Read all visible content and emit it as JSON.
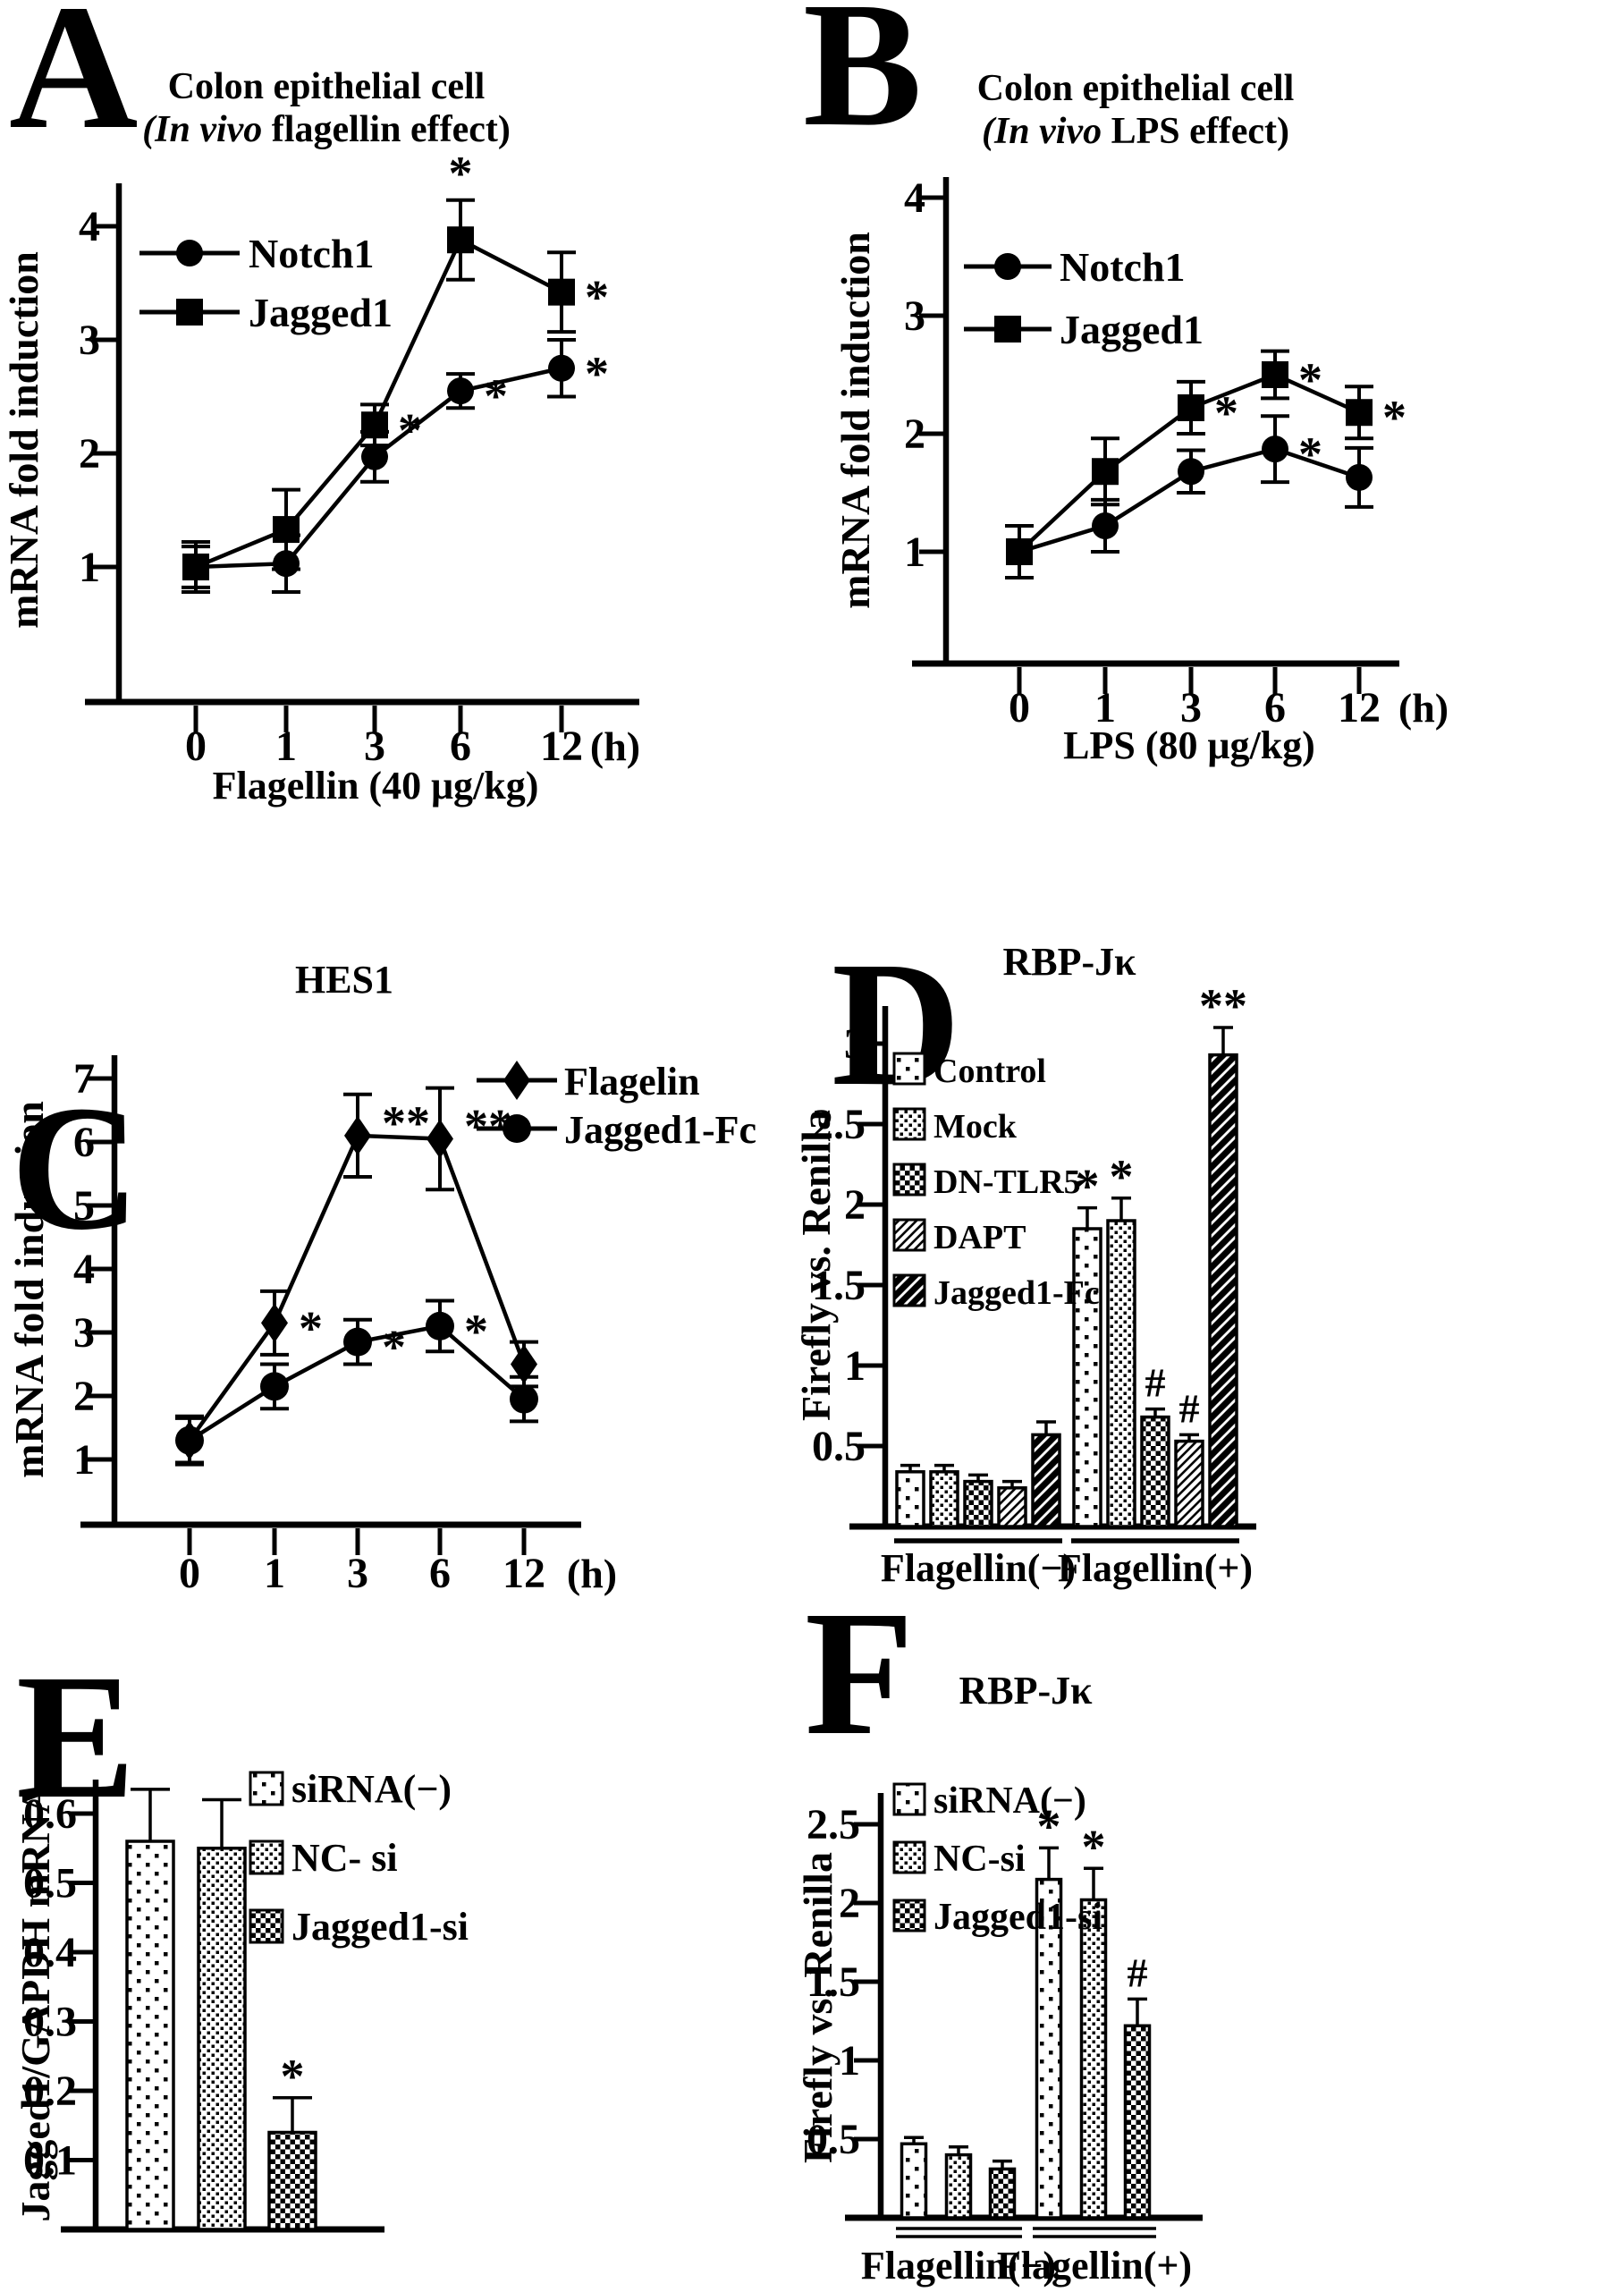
{
  "colors": {
    "ink": "#000000",
    "background": "#ffffff"
  },
  "chart_data": [
    {
      "panel": "A",
      "type": "line",
      "title": "Colon epithelial cell (In vivo flagellin effect)",
      "title_lines": [
        [
          {
            "t": "Colon epithelial cell"
          }
        ],
        [
          {
            "t": "(In vivo",
            "i": true
          },
          {
            "t": " flagellin effect)"
          }
        ]
      ],
      "ylabel": "mRNA fold induction",
      "yticks": [
        "1",
        "2",
        "3",
        "4"
      ],
      "ylim": [
        0,
        4.5
      ],
      "xticks": [
        "0",
        "1",
        "3",
        "6",
        "12"
      ],
      "x_unit": "(h)",
      "xlabel": "Flagellin (40 μg/kg)",
      "series": [
        {
          "name": "Jagged1",
          "marker": "square",
          "values": [
            1.0,
            1.33,
            2.25,
            3.88,
            3.42
          ],
          "errors": [
            0.22,
            0.35,
            0.18,
            0.35,
            0.35
          ],
          "annotations": [
            "",
            "",
            "*",
            "*",
            "*"
          ],
          "ann_side": [
            "",
            "",
            "right",
            "above",
            "right"
          ]
        },
        {
          "name": "Notch1",
          "marker": "circle",
          "values": [
            1.0,
            1.03,
            1.97,
            2.55,
            2.75
          ],
          "errors": [
            0.18,
            0.25,
            0.22,
            0.15,
            0.25
          ],
          "annotations": [
            "",
            "",
            "",
            "*",
            "*"
          ],
          "ann_side": [
            "",
            "",
            "",
            "right",
            "right"
          ]
        }
      ],
      "legend": [
        {
          "label": "Notch1",
          "marker": "circle"
        },
        {
          "label": "Jagged1",
          "marker": "square"
        }
      ]
    },
    {
      "panel": "B",
      "type": "line",
      "title": "Colon epithelial cell (In vivo LPS effect)",
      "title_lines": [
        [
          {
            "t": "Colon epithelial cell"
          }
        ],
        [
          {
            "t": "(In vivo",
            "i": true
          },
          {
            "t": " LPS effect)"
          }
        ]
      ],
      "ylabel": "mRNA fold induction",
      "yticks": [
        "1",
        "2",
        "3",
        "4"
      ],
      "ylim": [
        0,
        4.5
      ],
      "xticks": [
        "0",
        "1",
        "3",
        "6",
        "12"
      ],
      "x_unit": "(h)",
      "xlabel": "LPS (80 μg/kg)",
      "series": [
        {
          "name": "Jagged1",
          "marker": "square",
          "values": [
            1.0,
            1.68,
            2.22,
            2.5,
            2.18
          ],
          "errors": [
            0.22,
            0.28,
            0.22,
            0.2,
            0.22
          ],
          "annotations": [
            "",
            "",
            "*",
            "*",
            "*"
          ],
          "ann_side": [
            "",
            "",
            "right",
            "right",
            "right"
          ]
        },
        {
          "name": "Notch1",
          "marker": "circle",
          "values": [
            1.0,
            1.22,
            1.68,
            1.87,
            1.63
          ],
          "errors": [
            0.22,
            0.22,
            0.18,
            0.28,
            0.25
          ],
          "annotations": [
            "",
            "",
            "",
            "*",
            ""
          ],
          "ann_side": [
            "",
            "",
            "",
            "right",
            ""
          ]
        }
      ],
      "legend": [
        {
          "label": "Notch1",
          "marker": "circle"
        },
        {
          "label": "Jagged1",
          "marker": "square"
        }
      ]
    },
    {
      "panel": "C",
      "type": "line",
      "title": "HES1",
      "title_lines": [
        [
          {
            "t": "HES1"
          }
        ]
      ],
      "ylabel": "mRNA fold induction",
      "yticks": [
        "1",
        "2",
        "3",
        "4",
        "5",
        "6",
        "7"
      ],
      "ylim": [
        0,
        7.5
      ],
      "xticks": [
        "0",
        "1",
        "3",
        "6",
        "12"
      ],
      "x_unit": "(h)",
      "xlabel": "",
      "series": [
        {
          "name": "Flagelin",
          "marker": "diamond",
          "values": [
            1.3,
            3.15,
            6.1,
            6.05,
            2.5
          ],
          "errors": [
            0.38,
            0.5,
            0.65,
            0.8,
            0.35
          ],
          "annotations": [
            "",
            "*",
            "**",
            "**",
            ""
          ],
          "ann_side": [
            "",
            "right",
            "right",
            "right",
            ""
          ]
        },
        {
          "name": "Jagged1-Fc",
          "marker": "circle",
          "values": [
            1.3,
            2.15,
            2.85,
            3.1,
            1.95
          ],
          "errors": [
            0.35,
            0.35,
            0.35,
            0.4,
            0.35
          ],
          "annotations": [
            "",
            "",
            "*",
            "*",
            ""
          ],
          "ann_side": [
            "",
            "",
            "right",
            "right",
            ""
          ]
        }
      ],
      "legend": [
        {
          "label": "Flagelin",
          "marker": "diamond"
        },
        {
          "label": "Jagged1-Fc",
          "marker": "circle"
        }
      ]
    },
    {
      "panel": "D",
      "type": "bar",
      "title": "RBP-Jκ",
      "title_lines": [
        [
          {
            "t": "RBP-Jκ"
          }
        ]
      ],
      "ylabel": "Firefly vs. Renilla",
      "yticks": [
        "0.5",
        "1",
        "1.5",
        "2",
        "2.5",
        "3"
      ],
      "ylim": [
        0,
        3.2
      ],
      "series_labels": [
        "Control",
        "Mock",
        "DN-TLR5",
        "DAPT",
        "Jagged1-Fc"
      ],
      "patterns": [
        "dots-sparse",
        "dots-dense",
        "checker",
        "hatch-light",
        "hatch-heavy"
      ],
      "groups": [
        {
          "label": "Flagellin(−)",
          "values": [
            0.34,
            0.34,
            0.28,
            0.24,
            0.57
          ],
          "errors": [
            0.04,
            0.04,
            0.04,
            0.04,
            0.08
          ],
          "annotations": [
            "",
            "",
            "",
            "",
            ""
          ]
        },
        {
          "label": "Flagellin(+)",
          "values": [
            1.85,
            1.9,
            0.68,
            0.53,
            2.93
          ],
          "errors": [
            0.13,
            0.14,
            0.05,
            0.04,
            0.17
          ],
          "annotations": [
            "*",
            "*",
            "#",
            "#",
            "**"
          ]
        }
      ],
      "legend": [
        {
          "label": "Control",
          "pattern": "dots-sparse"
        },
        {
          "label": "Mock",
          "pattern": "dots-dense"
        },
        {
          "label": "DN-TLR5",
          "pattern": "checker"
        },
        {
          "label": "DAPT",
          "pattern": "hatch-light"
        },
        {
          "label": "Jagged1-Fc",
          "pattern": "hatch-heavy"
        }
      ]
    },
    {
      "panel": "E",
      "type": "bar",
      "title": "",
      "title_lines": [],
      "ylabel": "Jagged1/GAPDH mRNA",
      "yticks": [
        "0.1",
        "0.2",
        "0.3",
        "0.4",
        "0.5",
        "0.6"
      ],
      "ylim": [
        0,
        0.65
      ],
      "series_labels": [
        "siRNA(−)",
        "NC- si",
        "Jagged1-si"
      ],
      "patterns": [
        "dots-sparse",
        "dots-dense",
        "checker"
      ],
      "groups": [
        {
          "label": "",
          "values": [
            0.56,
            0.55,
            0.14
          ],
          "errors": [
            0.075,
            0.07,
            0.05
          ],
          "annotations": [
            "",
            "",
            "*"
          ]
        }
      ],
      "legend": [
        {
          "label": "siRNA(−)",
          "pattern": "dots-sparse"
        },
        {
          "label": "NC- si",
          "pattern": "dots-dense"
        },
        {
          "label": "Jagged1-si",
          "pattern": "checker"
        }
      ]
    },
    {
      "panel": "F",
      "type": "bar",
      "title": "RBP-Jκ",
      "title_lines": [
        [
          {
            "t": "RBP-Jκ"
          }
        ]
      ],
      "ylabel": "Firefly vs. Renilla",
      "yticks": [
        "0.5",
        "1",
        "1.5",
        "2",
        "2.5"
      ],
      "ylim": [
        0,
        2.7
      ],
      "series_labels": [
        "siRNA(−)",
        "NC-si",
        "Jagged1-si"
      ],
      "patterns": [
        "dots-sparse",
        "dots-dense",
        "checker"
      ],
      "groups": [
        {
          "label": "Flagellin(−)",
          "values": [
            0.47,
            0.4,
            0.31
          ],
          "errors": [
            0.04,
            0.05,
            0.05
          ],
          "annotations": [
            "",
            "",
            ""
          ]
        },
        {
          "label": "Flagellin(+)",
          "values": [
            2.15,
            2.02,
            1.22
          ],
          "errors": [
            0.2,
            0.2,
            0.17
          ],
          "annotations": [
            "*",
            "*",
            "#"
          ]
        }
      ],
      "legend": [
        {
          "label": "siRNA(−)",
          "pattern": "dots-sparse"
        },
        {
          "label": "NC-si",
          "pattern": "dots-dense"
        },
        {
          "label": "Jagged1-si",
          "pattern": "checker"
        }
      ]
    }
  ]
}
